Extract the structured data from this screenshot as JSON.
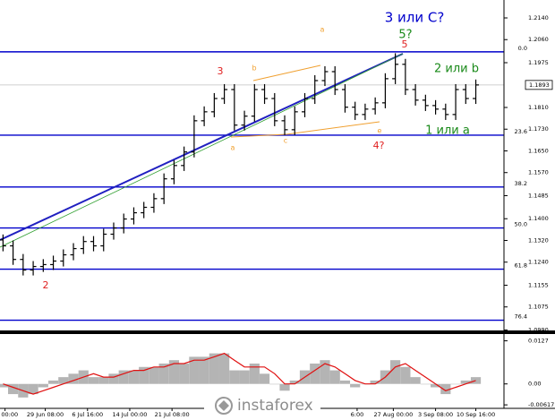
{
  "chart_data": [
    {
      "type": "ohlc",
      "color": "#000000",
      "xlim": [
        -0.3,
        49.8
      ],
      "ylim": [
        1.0985,
        1.2206
      ],
      "yticks": [
        {
          "value": 1.214,
          "label": "1.2140"
        },
        {
          "value": 1.206,
          "label": "1.2060"
        },
        1.1975,
        {
          "value": 1.181,
          "label": "1.1810"
        },
        {
          "value": 1.173,
          "label": "1.1730"
        },
        {
          "value": 1.165,
          "label": "1.1650"
        },
        {
          "value": 1.157,
          "label": "1.1570"
        },
        1.1485,
        {
          "value": 1.14,
          "label": "1.1400"
        },
        {
          "value": 1.132,
          "label": "1.1320"
        },
        {
          "value": 1.124,
          "label": "1.1240"
        },
        1.1155,
        1.1075,
        {
          "value": 1.099,
          "label": "1.0990"
        }
      ],
      "xticks": [
        {
          "value": 0.2,
          "label": "un 00:00"
        },
        {
          "value": 4.2,
          "label": "29 Jun 08:00"
        },
        {
          "value": 8.4,
          "label": "6 Jul 16:00"
        },
        {
          "value": 12.6,
          "label": "14 Jul 00:00"
        },
        {
          "value": 16.8,
          "label": "21 Jul 08:00"
        },
        {
          "value": 35.2,
          "label": "6:00"
        },
        {
          "value": 38.8,
          "label": "27 Aug 00:00"
        },
        {
          "value": 43,
          "label": "3 Sep 08:00"
        },
        {
          "value": 47,
          "label": "10 Sep 16:00"
        }
      ],
      "current_price": 1.1893,
      "fib_color": "#0000cc",
      "fib_levels": [
        {
          "label": "0.0",
          "value": 1.2015
        },
        {
          "label": "23.6",
          "value": 1.1708
        },
        {
          "label": "38.2",
          "value": 1.1517
        },
        {
          "label": "50.0",
          "value": 1.1366
        },
        {
          "label": "61.8",
          "value": 1.1214
        },
        {
          "label": "76.4",
          "value": 1.1026
        }
      ],
      "annotations": [
        {
          "text": "3 или С?",
          "color": "#0000cc"
        },
        {
          "text": "5?",
          "color": "#1a8a1a"
        },
        {
          "text": "5",
          "color": "#e02020"
        },
        {
          "text": "3",
          "color": "#e02020"
        },
        {
          "text": "2 или b",
          "color": "#1a8a1a"
        },
        {
          "text": "1 или а",
          "color": "#1a8a1a"
        },
        {
          "text": "4?",
          "color": "#e02020"
        },
        {
          "text": "2",
          "color": "#e02020"
        },
        {
          "text": "a",
          "color": "#f0a030"
        },
        {
          "text": "b",
          "color": "#f0a030"
        },
        {
          "text": "a",
          "color": "#f0a030"
        },
        {
          "text": "c",
          "color": "#f0a030"
        },
        {
          "text": "e",
          "color": "#f0a030"
        }
      ],
      "logo": "instaforex",
      "ohlc": [
        [
          1.1322,
          1.1342,
          1.128,
          1.13
        ],
        [
          1.13,
          1.132,
          1.123,
          1.125
        ],
        [
          1.125,
          1.127,
          1.1191,
          1.1211
        ],
        [
          1.1211,
          1.1244,
          1.1191,
          1.1224
        ],
        [
          1.1224,
          1.1251,
          1.1204,
          1.1231
        ],
        [
          1.1231,
          1.1264,
          1.1211,
          1.1244
        ],
        [
          1.1244,
          1.1287,
          1.1224,
          1.1267
        ],
        [
          1.1267,
          1.131,
          1.1247,
          1.129
        ],
        [
          1.129,
          1.1336,
          1.127,
          1.1316
        ],
        [
          1.1316,
          1.1336,
          1.128,
          1.13
        ],
        [
          1.13,
          1.1363,
          1.128,
          1.1343
        ],
        [
          1.1343,
          1.1386,
          1.1323,
          1.1366
        ],
        [
          1.1366,
          1.1419,
          1.1346,
          1.1399
        ],
        [
          1.1399,
          1.1442,
          1.1379,
          1.1422
        ],
        [
          1.1422,
          1.1462,
          1.1402,
          1.1442
        ],
        [
          1.1442,
          1.1494,
          1.1422,
          1.1474
        ],
        [
          1.1474,
          1.1567,
          1.1454,
          1.1547
        ],
        [
          1.1547,
          1.1616,
          1.1527,
          1.1596
        ],
        [
          1.1596,
          1.1666,
          1.1576,
          1.1646
        ],
        [
          1.1646,
          1.1781,
          1.1626,
          1.1761
        ],
        [
          1.1761,
          1.1814,
          1.1741,
          1.1794
        ],
        [
          1.1794,
          1.1863,
          1.1774,
          1.1843
        ],
        [
          1.1843,
          1.1896,
          1.1823,
          1.1876
        ],
        [
          1.1876,
          1.1896,
          1.1725,
          1.1745
        ],
        [
          1.1745,
          1.1798,
          1.1725,
          1.1778
        ],
        [
          1.1778,
          1.1896,
          1.1758,
          1.1876
        ],
        [
          1.1876,
          1.1896,
          1.1823,
          1.1843
        ],
        [
          1.1843,
          1.1863,
          1.1741,
          1.1761
        ],
        [
          1.1761,
          1.1781,
          1.1708,
          1.1728
        ],
        [
          1.1728,
          1.1814,
          1.1708,
          1.1794
        ],
        [
          1.1794,
          1.1863,
          1.1774,
          1.1843
        ],
        [
          1.1843,
          1.1929,
          1.1823,
          1.1909
        ],
        [
          1.1909,
          1.1962,
          1.1889,
          1.1942
        ],
        [
          1.1942,
          1.1962,
          1.1856,
          1.1876
        ],
        [
          1.1876,
          1.1896,
          1.1791,
          1.1811
        ],
        [
          1.1811,
          1.1831,
          1.1764,
          1.1784
        ],
        [
          1.1784,
          1.1824,
          1.1764,
          1.1804
        ],
        [
          1.1804,
          1.1847,
          1.1784,
          1.1827
        ],
        [
          1.1827,
          1.1936,
          1.1807,
          1.1916
        ],
        [
          1.1916,
          1.201,
          1.1896,
          1.1969
        ],
        [
          1.1969,
          1.1989,
          1.1856,
          1.1876
        ],
        [
          1.1876,
          1.1896,
          1.1817,
          1.1837
        ],
        [
          1.1837,
          1.1857,
          1.1797,
          1.1817
        ],
        [
          1.1817,
          1.1837,
          1.1784,
          1.1804
        ],
        [
          1.1804,
          1.1824,
          1.1764,
          1.1784
        ],
        [
          1.1784,
          1.1896,
          1.1764,
          1.1876
        ],
        [
          1.1876,
          1.1896,
          1.1823,
          1.1843
        ],
        [
          1.1843,
          1.1913,
          1.1823,
          1.1893
        ]
      ]
    },
    {
      "type": "histogram",
      "color": "#b4b4b4",
      "signal_color": "#e01010",
      "ylim": [
        -0.0072,
        0.0147
      ],
      "yticks": [
        0.0127,
        {
          "value": 0,
          "label": "0.00"
        },
        -0.00617
      ],
      "values": [
        -0.001,
        -0.003,
        -0.004,
        -0.003,
        -0.001,
        0.001,
        0.002,
        0.003,
        0.004,
        0.002,
        0.002,
        0.003,
        0.004,
        0.004,
        0.005,
        0.005,
        0.006,
        0.007,
        0.006,
        0.008,
        0.008,
        0.009,
        0.009,
        0.004,
        0.004,
        0.006,
        0.003,
        0.0,
        -0.002,
        0.001,
        0.004,
        0.006,
        0.007,
        0.004,
        0.001,
        -0.001,
        0.0,
        0.001,
        0.004,
        0.007,
        0.005,
        0.002,
        0.0,
        -0.001,
        -0.003,
        0.0,
        0.001,
        0.002
      ],
      "signal_values": [
        0.0,
        -0.001,
        -0.002,
        -0.003,
        -0.002,
        -0.001,
        0.0,
        0.001,
        0.002,
        0.003,
        0.002,
        0.002,
        0.003,
        0.004,
        0.004,
        0.005,
        0.005,
        0.006,
        0.006,
        0.007,
        0.007,
        0.008,
        0.009,
        0.007,
        0.005,
        0.005,
        0.005,
        0.003,
        0.0,
        0.0,
        0.002,
        0.004,
        0.006,
        0.005,
        0.003,
        0.001,
        0.0,
        0.0,
        0.002,
        0.005,
        0.006,
        0.004,
        0.002,
        0.0,
        -0.002,
        -0.001,
        0.0,
        0.001
      ]
    }
  ]
}
